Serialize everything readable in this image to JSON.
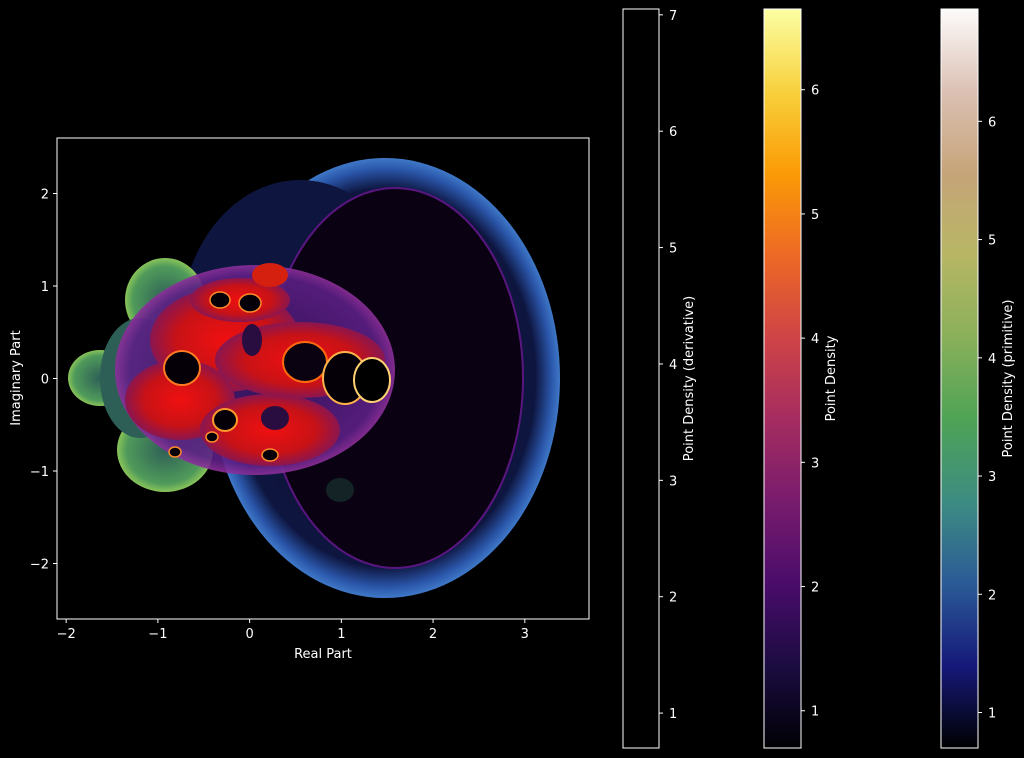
{
  "chart_data": {
    "type": "heatmap",
    "title": "",
    "xlabel": "Real Part",
    "ylabel": "Imaginary Part",
    "xlim": [
      -2.1,
      3.7
    ],
    "ylim": [
      -2.6,
      2.6
    ],
    "xticks": [
      -2,
      -1,
      0,
      1,
      2,
      3
    ],
    "yticks": [
      2,
      1,
      0,
      -1,
      -2
    ],
    "xtick_labels": [
      "−2",
      "−1",
      "0",
      "1",
      "2",
      "3"
    ],
    "ytick_labels": [
      "2",
      "1",
      "0",
      "−1",
      "−2"
    ],
    "grid": false,
    "background": "#000000",
    "colorbars": [
      {
        "label": "Point Density (derivative)",
        "colormap": "white",
        "range": [
          0.7,
          7.05
        ],
        "ticks": [
          1,
          2,
          3,
          4,
          5,
          6,
          7
        ],
        "stops": [
          "#000000",
          "#000000"
        ]
      },
      {
        "label": "Point Density",
        "colormap": "inferno",
        "range": [
          0.7,
          6.65
        ],
        "ticks": [
          1,
          2,
          3,
          4,
          5,
          6
        ],
        "stops": [
          "#000004",
          "#1b0c41",
          "#4a0c6b",
          "#781c6d",
          "#a52c60",
          "#cf4446",
          "#ed6925",
          "#fb9b06",
          "#f7d13d",
          "#fcffa4"
        ]
      },
      {
        "label": "Point Density (primitive)",
        "colormap": "gist_earth",
        "range": [
          0.7,
          6.95
        ],
        "ticks": [
          1,
          2,
          3,
          4,
          5,
          6
        ],
        "stops": [
          "#000000",
          "#16197a",
          "#2b5a96",
          "#3d8c82",
          "#4ea356",
          "#8ab05a",
          "#b7b664",
          "#c6a479",
          "#dcc1b4",
          "#fdfbfb"
        ]
      }
    ]
  }
}
